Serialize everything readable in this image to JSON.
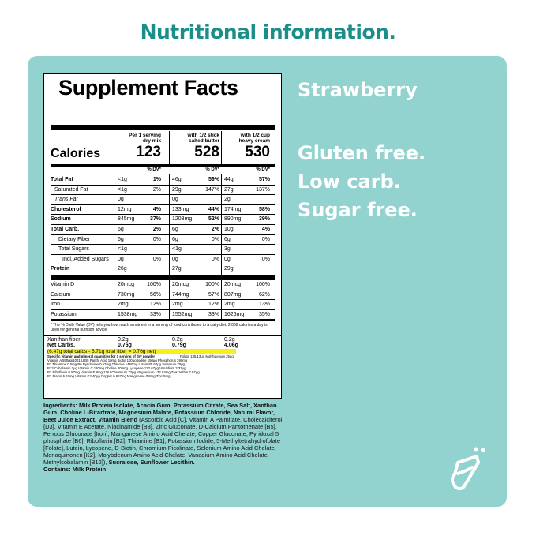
{
  "heading": "Nutritional information.",
  "label": {
    "title": "Supplement Facts",
    "calories_label": "Calories",
    "columns": [
      {
        "header": "Per 1 serving\ndry mix",
        "calories": "123"
      },
      {
        "header": "with 1/2 stick\nsalted butter",
        "calories": "528"
      },
      {
        "header": "with 1/2 cup\nheavy cream",
        "calories": "530"
      }
    ],
    "dv_label": "% DV*",
    "rows": [
      {
        "name": "Total Fat",
        "bold": true,
        "v": [
          "<1g",
          "1%",
          "46g",
          "59%",
          "44g",
          "57%"
        ]
      },
      {
        "name": "Saturated Fat",
        "bold": false,
        "indent": 1,
        "v": [
          "<1g",
          "2%",
          "29g",
          "147%",
          "27g",
          "137%"
        ]
      },
      {
        "name": "Trans Fat",
        "bold": false,
        "indent": 1,
        "v": [
          "0g",
          "",
          "0g",
          "",
          "2g",
          ""
        ]
      },
      {
        "name": "Cholesterol",
        "bold": true,
        "v": [
          "12mg",
          "4%",
          "133mg",
          "44%",
          "174mg",
          "58%"
        ]
      },
      {
        "name": "Sodium",
        "bold": true,
        "v": [
          "845mg",
          "37%",
          "1208mg",
          "52%",
          "890mg",
          "39%"
        ]
      },
      {
        "name": "Total Carb.",
        "bold": true,
        "v": [
          "6g",
          "2%",
          "6g",
          "2%",
          "10g",
          "4%"
        ]
      },
      {
        "name": "Dietary Fiber",
        "bold": false,
        "indent": 2,
        "v": [
          "6g",
          "0%",
          "6g",
          "0%",
          "6g",
          "0%"
        ]
      },
      {
        "name": "Total Sugars",
        "bold": false,
        "indent": 2,
        "v": [
          "<1g",
          "",
          "<1g",
          "",
          "3g",
          ""
        ]
      },
      {
        "name": "Incl. Added Sugars",
        "bold": false,
        "indent": 3,
        "v": [
          "0g",
          "0%",
          "0g",
          "0%",
          "0g",
          "0%"
        ]
      },
      {
        "name": "Protein",
        "bold": true,
        "v": [
          "26g",
          "",
          "27g",
          "",
          "29g",
          ""
        ]
      },
      {
        "name": "Vitamin D",
        "bold": false,
        "v": [
          "20mcg",
          "100%",
          "20mcg",
          "100%",
          "20mcg",
          "100%"
        ]
      },
      {
        "name": "Calcium",
        "bold": false,
        "v": [
          "730mg",
          "56%",
          "744mg",
          "57%",
          "807mg",
          "62%"
        ]
      },
      {
        "name": "Iron",
        "bold": false,
        "v": [
          "2mg",
          "12%",
          "2mg",
          "12%",
          "2mg",
          "13%"
        ]
      },
      {
        "name": "Potassium",
        "bold": false,
        "v": [
          "1538mg",
          "33%",
          "1552mg",
          "33%",
          "1626mg",
          "35%"
        ]
      }
    ],
    "footnote": "* The % Daily Value (DV) tells you how much a nutrient in a serving of food contributes to a daily diet. 2,000 calories a day is used for general nutrition advice.",
    "xanthan": {
      "name": "Xanthan fiber",
      "v": [
        "0.2g",
        "0.2g",
        "0.2g"
      ]
    },
    "netcarbs": {
      "name": "Net Carbs.",
      "v": [
        "0.76g",
        "0.79g",
        "4.06g"
      ]
    },
    "highlight": "(6.47g total carbs - 5.71g total fiber = 0.76g net)",
    "vitamin_heading": "Specific vitamin and mineral quantities for 1 serving of dry powder",
    "vitamin_lines": [
      "Vitamin A 550μg/1001IU  B5 Panth. Acid   10mg  Biotin               100μg  Iodine            150μg  Phosphorus       390mg",
      "B1 Thiamine     0.5mg  B6 Pyridoxine  0.67mg  Chloride            1450mg  Lutein           85.67μg  Selenium          70μg",
      "B12 Cobalamin    2μg  Vitamin C         120mg  Choline             205mg  Lycopene       122.67μg  Vanadium        3.33μg",
      "B2 Riboflavin   0.57mg  Vitamin E    8mg/12IU  Chromium             72μg  Magnesium    132.63mg  Zeaxanthin     7.97μg",
      "B3 Niacin        6.67mg  Vitamin K2        40μg  Copper           0.667mg  Manganese        0.8mg  Zinc               5mg"
    ],
    "vitamin_top_right": "Folate              135.13μg  Molybdenum        25μg"
  },
  "ingredients": {
    "segments": [
      {
        "t": "Ingredients: Milk Protein Isolate, Acacia Gum, Potassium Citrate, Sea Salt, Xanthan Gum, Choline L-Bitartrate, Magnesium Malate, Potassium Chloride, Natural Flavor, Beet Juice Extract, Vitamin Blend ",
        "b": true
      },
      {
        "t": "(Ascorbic Acid [C], Vitamin A Palmitate, Cholecalciferol [D3], Vitamin E Acetate, Niacinamide [B3], Zinc Gluconate, D-Calcium Pantothenate [B5], Ferrous Gluconate [Iron], Manganese Amino Acid Chelate, Copper Gluconate, Pyridoxal 5 phosphate [B6], Riboflavin [B2], Thiamine [B1], Potassium Iodide, 5-Methyltetrahydrofolate [Folate], Lutein, Lycopene, D-Biotin, Chromium Picolinate, Selenium Amino Acid Chelate, Menaquinonen [K2], Molybdenum Amino Acid Chelate, Vanadium Amino Acid Chelate, Methylcobalamin [B12]), ",
        "b": false
      },
      {
        "t": "Sucralose, Sunflower Lecithin.",
        "b": true
      }
    ],
    "contains": "Contains: Milk Protein"
  },
  "flavor": "Strawberry",
  "claims": [
    "Gluten free.",
    "Low carb.",
    "Sugar free."
  ],
  "cup_icon": "shake-cup-icon",
  "colors": {
    "panel": "#93d3cf",
    "heading": "#1a8f8a",
    "highlight": "#f5f019"
  }
}
